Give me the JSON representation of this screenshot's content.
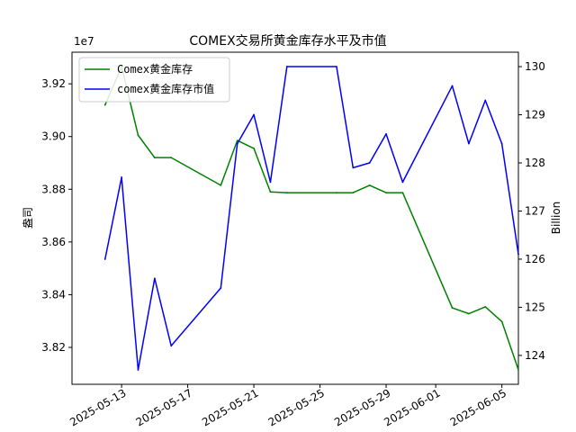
{
  "chart_data": {
    "type": "line",
    "title": "COMEX交易所黄金库存水平及市值",
    "xlabel": "",
    "ylabel_left": "盎司",
    "ylabel_right": "Billion",
    "left_offset_label": "1e7",
    "x_tick_labels": [
      "2025-05-13",
      "2025-05-17",
      "2025-05-21",
      "2025-05-25",
      "2025-05-29",
      "2025-06-01",
      "2025-06-05"
    ],
    "x_tick_dates": [
      "2025-05-13",
      "2025-05-17",
      "2025-05-21",
      "2025-05-25",
      "2025-05-29",
      "2025-06-01",
      "2025-06-05"
    ],
    "y_left_ticks": [
      3.82,
      3.84,
      3.86,
      3.88,
      3.9,
      3.92
    ],
    "y_left_tick_labels": [
      "3.82",
      "3.84",
      "3.86",
      "3.88",
      "3.90",
      "3.92"
    ],
    "y_right_ticks": [
      124,
      125,
      126,
      127,
      128,
      129,
      130
    ],
    "y_right_tick_labels": [
      "124",
      "125",
      "126",
      "127",
      "128",
      "129",
      "130"
    ],
    "x_range": [
      "2025-05-10",
      "2025-06-06"
    ],
    "y_left_range": [
      3.806,
      3.932
    ],
    "y_right_range": [
      123.4,
      130.3
    ],
    "grid": false,
    "legend_position": "upper-left",
    "x": [
      "2025-05-12",
      "2025-05-13",
      "2025-05-14",
      "2025-05-15",
      "2025-05-16",
      "2025-05-19",
      "2025-05-20",
      "2025-05-21",
      "2025-05-22",
      "2025-05-23",
      "2025-05-26",
      "2025-05-27",
      "2025-05-28",
      "2025-05-29",
      "2025-05-30",
      "2025-06-02",
      "2025-06-03",
      "2025-06-04",
      "2025-06-05",
      "2025-06-06"
    ],
    "series": [
      {
        "name": "Comex黄金库存",
        "axis": "left",
        "color": "#008000",
        "values": [
          3.912,
          3.9265,
          3.9005,
          3.892,
          3.892,
          3.8815,
          3.8985,
          3.8955,
          3.879,
          3.8787,
          3.8787,
          3.8787,
          3.8815,
          3.8787,
          3.8787,
          3.835,
          3.8328,
          3.8354,
          3.8298,
          3.8115
        ]
      },
      {
        "name": "comex黄金库存市值",
        "axis": "right",
        "color": "#0000ff",
        "values": [
          126.0,
          127.7,
          123.7,
          125.6,
          124.2,
          125.4,
          128.4,
          129.0,
          127.6,
          130.0,
          130.0,
          127.9,
          128.0,
          128.6,
          127.6,
          129.6,
          128.4,
          129.3,
          128.4,
          126.1
        ]
      }
    ]
  }
}
